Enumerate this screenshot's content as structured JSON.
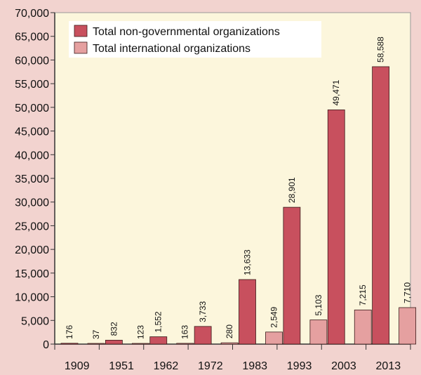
{
  "chart_data": {
    "type": "bar",
    "categories": [
      "1909",
      "1951",
      "1962",
      "1972",
      "1983",
      "1993",
      "2003",
      "2013"
    ],
    "series": [
      {
        "name": "Total non-governmental organizations",
        "values": [
          176,
          832,
          1552,
          3733,
          13633,
          28901,
          49471,
          58588
        ],
        "labels": [
          "176",
          "832",
          "1,552",
          "3,733",
          "13,633",
          "28,901",
          "49,471",
          "58,588"
        ],
        "color": "#c8505e"
      },
      {
        "name": "Total international organizations",
        "values": [
          37,
          123,
          163,
          280,
          2549,
          5103,
          7215,
          7710
        ],
        "labels": [
          "37",
          "123",
          "163",
          "280",
          "2,549",
          "5,103",
          "7,215",
          "7,710"
        ],
        "color": "#e5a0a0"
      }
    ],
    "yticks": [
      "0",
      "5,000",
      "10,000",
      "15,000",
      "20,000",
      "25,000",
      "30,000",
      "35,000",
      "40,000",
      "45,000",
      "50,000",
      "55,000",
      "60,000",
      "65,000",
      "70,000"
    ],
    "ylim": [
      0,
      70000
    ],
    "ystep": 5000,
    "grid": false,
    "legend": "top-left",
    "colors": {
      "plot_background": "#fcf6dc",
      "page_background": "#f2d3cf",
      "axis": "#333333"
    }
  }
}
